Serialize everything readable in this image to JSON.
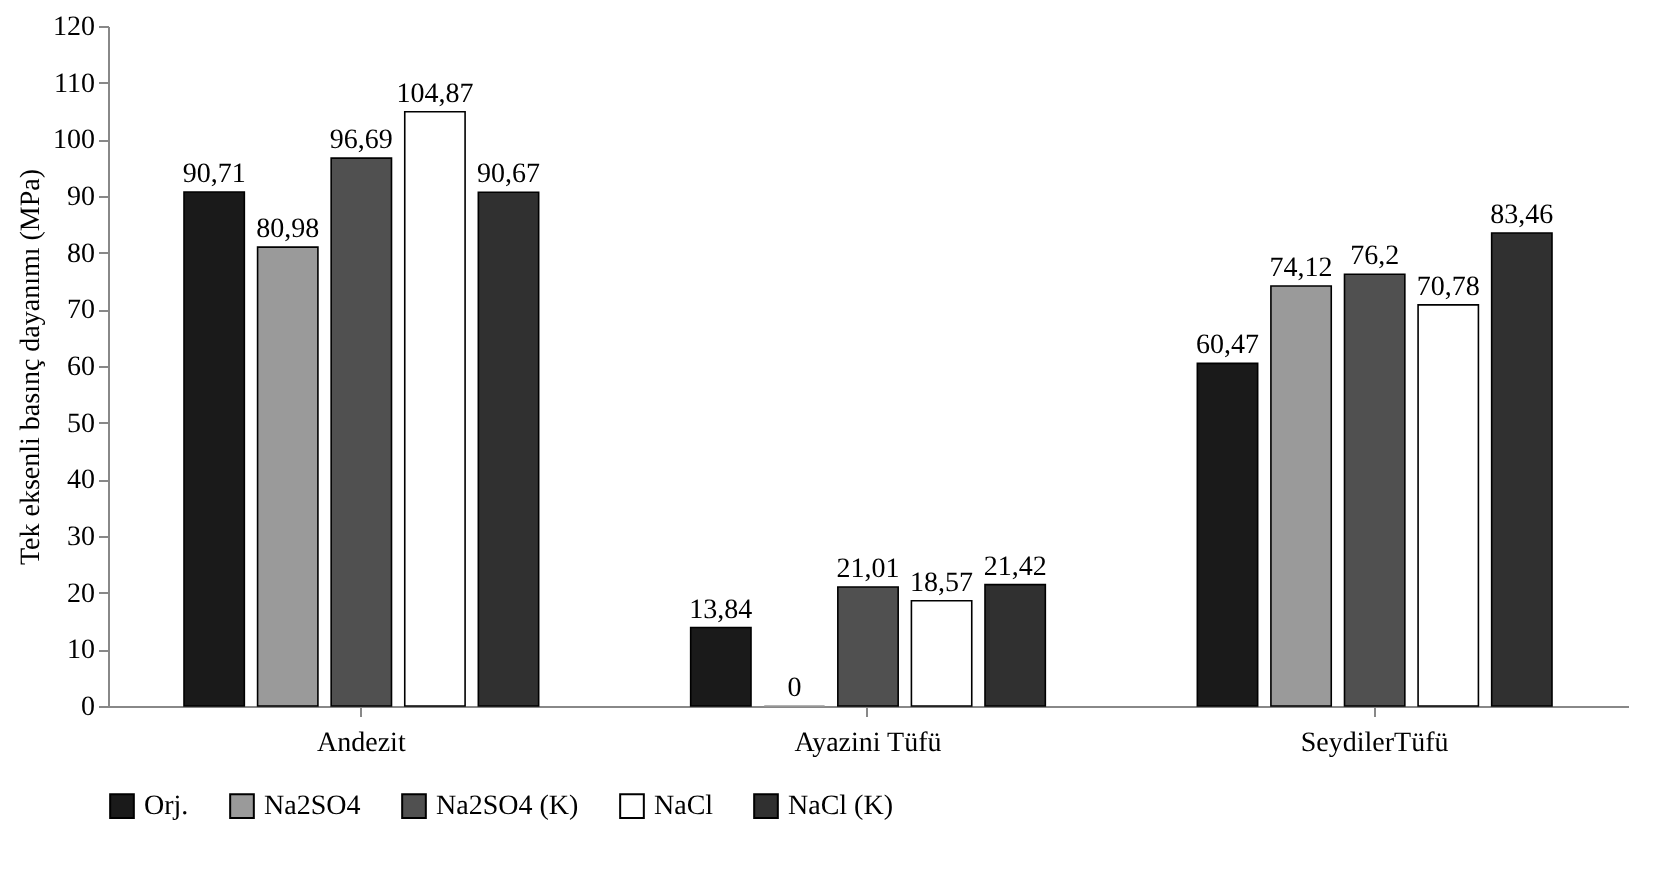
{
  "chart_data": {
    "type": "bar",
    "ylabel": "Tek eksenli basınç dayanımı (MPa)",
    "categories": [
      "Andezit",
      "Ayazini Tüfü",
      "SeydilerTüfü"
    ],
    "series": [
      {
        "name": "Orj.",
        "color": "#1a1a1a",
        "values": [
          90.71,
          13.84,
          60.47
        ],
        "value_labels": [
          "90,71",
          "13,84",
          "60,47"
        ]
      },
      {
        "name": "Na2SO4",
        "color": "#9a9a9a",
        "values": [
          80.98,
          0,
          74.12
        ],
        "value_labels": [
          "80,98",
          "0",
          "74,12"
        ]
      },
      {
        "name": "Na2SO4 (K)",
        "color": "#505050",
        "values": [
          96.69,
          21.01,
          76.2
        ],
        "value_labels": [
          "96,69",
          "21,01",
          "76,2"
        ]
      },
      {
        "name": "NaCl",
        "color": "#ffffff",
        "values": [
          104.87,
          18.57,
          70.78
        ],
        "value_labels": [
          "104,87",
          "18,57",
          "70,78"
        ]
      },
      {
        "name": "NaCl (K)",
        "color": "#303030",
        "values": [
          90.67,
          21.42,
          83.46
        ],
        "value_labels": [
          "90,67",
          "21,42",
          "83,46"
        ]
      }
    ],
    "ylim": [
      0,
      120
    ],
    "yticks": [
      0,
      10,
      20,
      30,
      40,
      50,
      60,
      70,
      80,
      90,
      100,
      110,
      120
    ],
    "grid": false,
    "legend": "bottom"
  }
}
